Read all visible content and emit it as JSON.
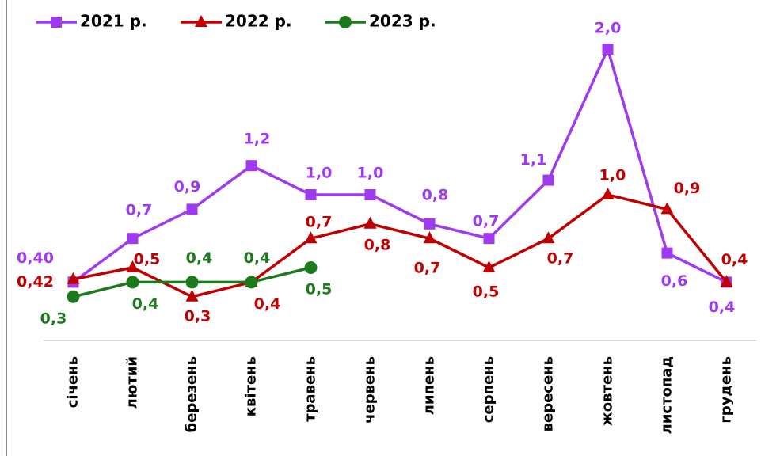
{
  "chart_data": {
    "type": "line",
    "categories": [
      "січень",
      "лютий",
      "березень",
      "квітень",
      "травень",
      "червень",
      "липень",
      "серпень",
      "вересень",
      "жовтень",
      "листопад",
      "грудень"
    ],
    "series": [
      {
        "name": "2021 р.",
        "color": "#9f3af0",
        "marker": "square",
        "values": [
          0.4,
          0.7,
          0.9,
          1.2,
          1.0,
          1.0,
          0.8,
          0.7,
          1.1,
          2.0,
          0.6,
          0.4
        ],
        "value_labels": [
          "0,40",
          "0,7",
          "0,9",
          "1,2",
          "1,0",
          "1,0",
          "0,8",
          "0,7",
          "1,1",
          "2,0",
          "0,6",
          "0,4"
        ]
      },
      {
        "name": "2022 р.",
        "color": "#c00000",
        "marker": "triangle",
        "values": [
          0.42,
          0.5,
          0.3,
          0.4,
          0.7,
          0.8,
          0.7,
          0.5,
          0.7,
          1.0,
          0.9,
          0.4
        ],
        "value_labels": [
          "0,42",
          "0,5",
          "0,3",
          "0,4",
          "0,7",
          "0,8",
          "0,7",
          "0,5",
          "0,7",
          "1,0",
          "0,9",
          "0,4"
        ]
      },
      {
        "name": "2023 р.",
        "color": "#1c7a1c",
        "marker": "circle",
        "values": [
          0.3,
          0.4,
          0.4,
          0.4,
          0.5,
          null,
          null,
          null,
          null,
          null,
          null,
          null
        ],
        "value_labels": [
          "0,3",
          "0,4",
          "0,4",
          "0,4",
          "0,5",
          null,
          null,
          null,
          null,
          null,
          null,
          null
        ]
      }
    ]
  }
}
